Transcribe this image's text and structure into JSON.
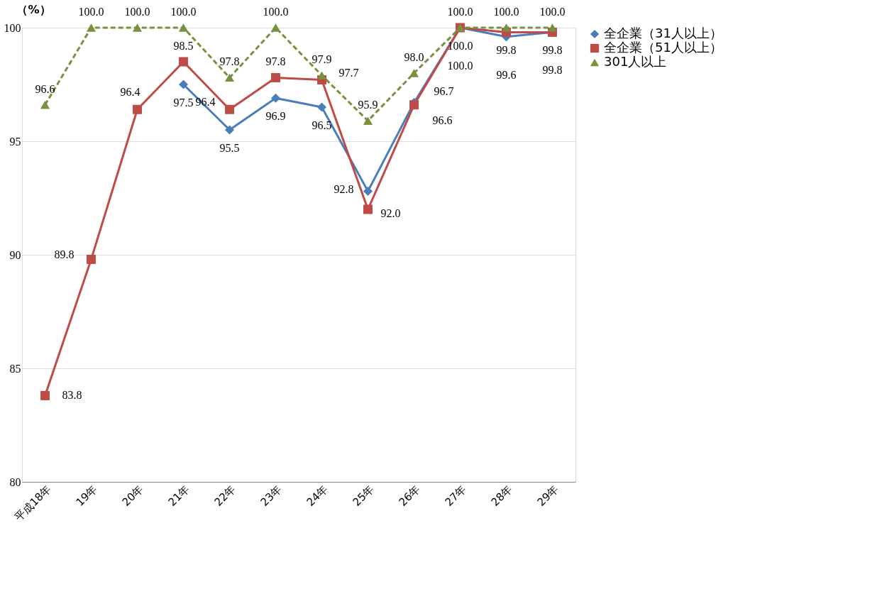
{
  "chart_data": {
    "type": "line",
    "categories": [
      "平成18年",
      "19年",
      "20年",
      "21年",
      "22年",
      "23年",
      "24年",
      "25年",
      "26年",
      "27年",
      "28年",
      "29年"
    ],
    "ylabel": "（%）",
    "ylim": [
      80,
      100
    ],
    "yticks": [
      80,
      85,
      90,
      95,
      100
    ],
    "grid": "y",
    "legend": "right",
    "series": [
      {
        "name": "全企業（31人以上）",
        "color": "#4a7ebb",
        "marker": "diamond",
        "line_style": "solid",
        "values": [
          null,
          null,
          null,
          97.5,
          95.5,
          96.9,
          96.5,
          92.8,
          96.7,
          100.0,
          99.6,
          99.8
        ],
        "value_labels": [
          null,
          null,
          null,
          "97.5",
          "95.5",
          "96.9",
          "96.5",
          "92.8",
          "96.7",
          "100.0",
          "99.6",
          "99.8"
        ]
      },
      {
        "name": "全企業（51人以上）",
        "color": "#be4b48",
        "marker": "square",
        "line_style": "solid",
        "values": [
          83.8,
          89.8,
          96.4,
          98.5,
          96.4,
          97.8,
          97.7,
          92.0,
          96.6,
          100.0,
          99.8,
          99.8
        ],
        "value_labels": [
          "83.8",
          "89.8",
          "96.4",
          "98.5",
          "96.4",
          "97.8",
          "97.7",
          "92.0",
          "96.6",
          "100.0",
          "99.8",
          "99.8"
        ]
      },
      {
        "name": "301人以上",
        "color": "#76923c",
        "marker": "triangle",
        "line_style": "dashed",
        "values": [
          96.6,
          100.0,
          100.0,
          100.0,
          97.8,
          100.0,
          97.9,
          95.9,
          98.0,
          100.0,
          100.0,
          100.0
        ],
        "value_labels": [
          "96.6",
          "100.0",
          "100.0",
          "100.0",
          "97.8",
          "100.0",
          "97.9",
          "95.9",
          "98.0",
          "100.0",
          "100.0",
          "100.0"
        ]
      }
    ]
  }
}
